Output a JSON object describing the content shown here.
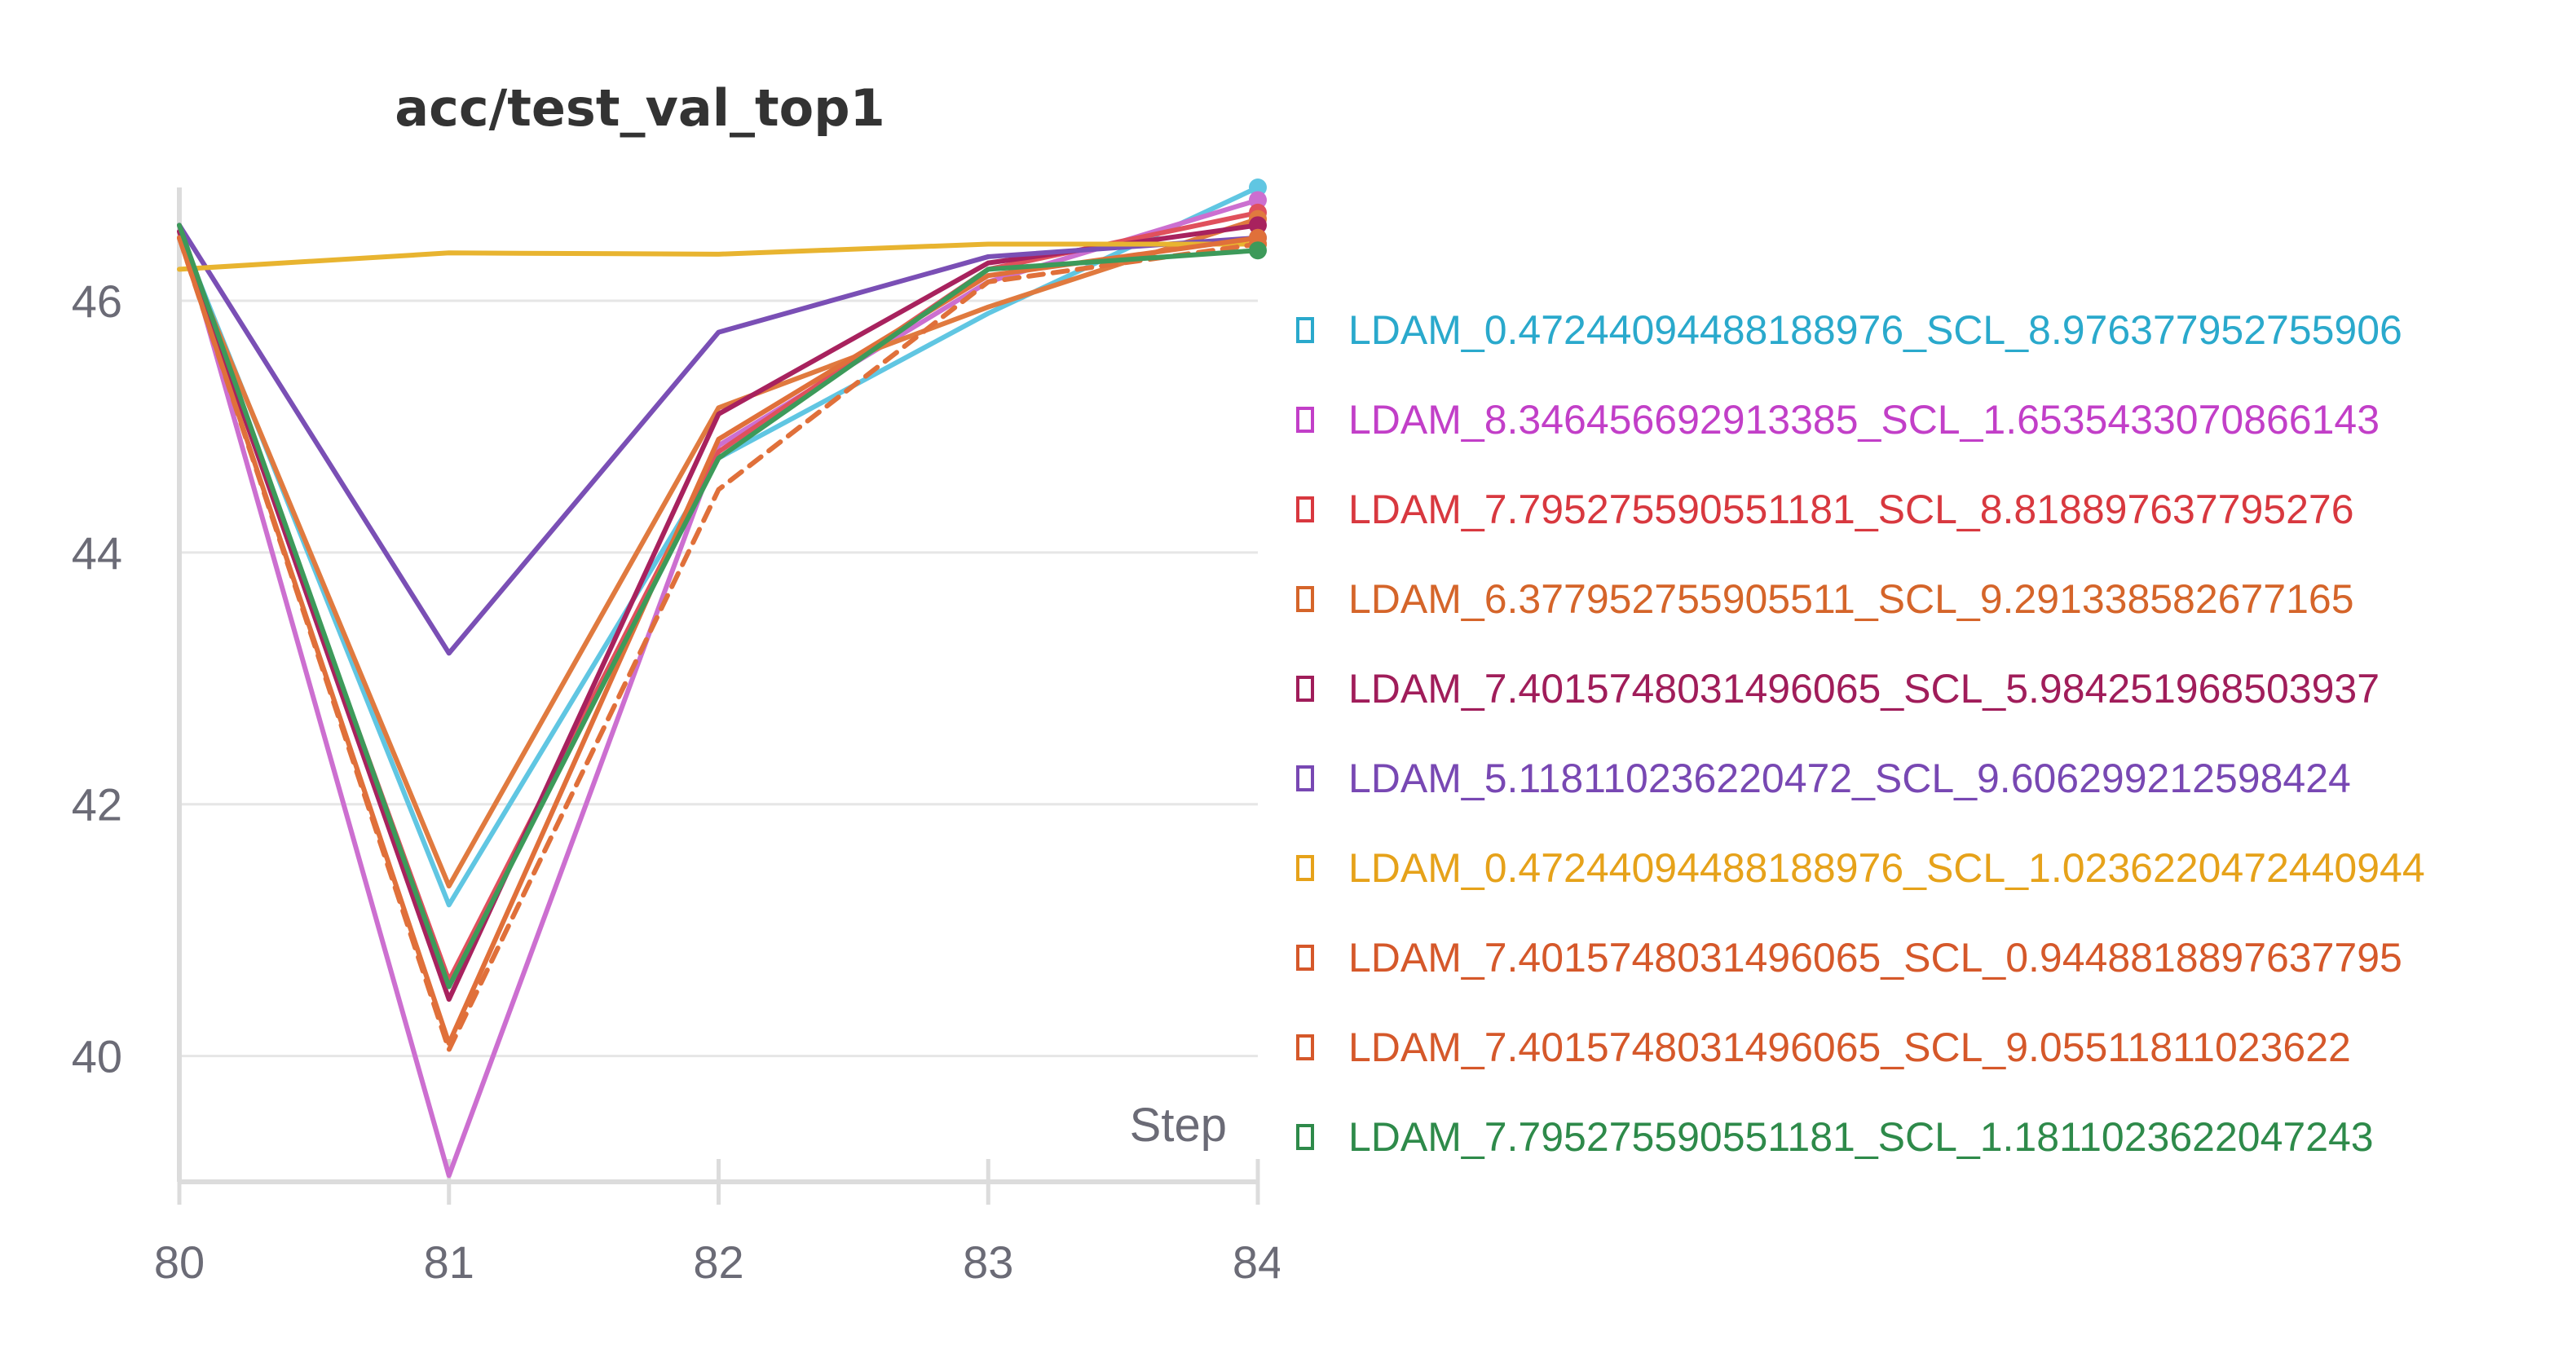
{
  "chart_data": {
    "type": "line",
    "title": "acc/test_val_top1",
    "xlabel": "Step",
    "ylabel": "",
    "x": [
      80,
      81,
      82,
      83,
      84
    ],
    "xlim": [
      80,
      84
    ],
    "ylim": [
      39,
      46.9
    ],
    "yticks": [
      40,
      42,
      44,
      46
    ],
    "xticks": [
      80,
      81,
      82,
      83,
      84
    ],
    "grid": true,
    "legend_position": "right",
    "series": [
      {
        "name": "LDAM_0.47244094488188976_SCL_8.976377952755906",
        "color": "#2aa9cc",
        "plotColor": "#60c6e2",
        "dashed": false,
        "values": [
          46.55,
          41.2,
          44.75,
          45.9,
          46.9
        ]
      },
      {
        "name": "LDAM_8.346456692913385_SCL_1.6535433070866143",
        "color": "#c23fc8",
        "plotColor": "#cc6fd0",
        "dashed": false,
        "values": [
          46.6,
          39.05,
          44.85,
          46.15,
          46.8
        ]
      },
      {
        "name": "LDAM_7.795275590551181_SCL_8.818897637795276",
        "color": "#d8383f",
        "plotColor": "#e0505c",
        "dashed": false,
        "values": [
          46.5,
          40.6,
          44.8,
          46.25,
          46.7
        ]
      },
      {
        "name": "LDAM_6.377952755905511_SCL_9.291338582677165",
        "color": "#d5652a",
        "plotColor": "#e07a3f",
        "dashed": false,
        "values": [
          46.5,
          41.35,
          45.15,
          45.95,
          46.65
        ]
      },
      {
        "name": "LDAM_7.4015748031496065_SCL_5.984251968503937",
        "color": "#a01d5a",
        "plotColor": "#a8225e",
        "dashed": false,
        "values": [
          46.55,
          40.45,
          45.1,
          46.3,
          46.6
        ]
      },
      {
        "name": "LDAM_5.118110236220472_SCL_9.606299212598424",
        "color": "#7848b3",
        "plotColor": "#7a4fb5",
        "dashed": false,
        "values": [
          46.6,
          43.2,
          45.75,
          46.35,
          46.5
        ]
      },
      {
        "name": "LDAM_0.47244094488188976_SCL_1.0236220472440944",
        "color": "#e6a21a",
        "plotColor": "#e8b430",
        "dashed": false,
        "values": [
          46.25,
          46.38,
          46.37,
          46.45,
          46.45
        ]
      },
      {
        "name": "LDAM_7.4015748031496065_SCL_0.9448818897637795",
        "color": "#d5582a",
        "plotColor": "#e0703a",
        "dashed": true,
        "values": [
          46.5,
          40.05,
          44.5,
          46.15,
          46.45
        ]
      },
      {
        "name": "LDAM_7.4015748031496065_SCL_9.05511811023622",
        "color": "#d5582a",
        "plotColor": "#e0703a",
        "dashed": false,
        "values": [
          46.5,
          40.1,
          44.9,
          46.2,
          46.5
        ]
      },
      {
        "name": "LDAM_7.795275590551181_SCL_1.1811023622047243",
        "color": "#2e8a4a",
        "plotColor": "#3d9a5a",
        "dashed": false,
        "values": [
          46.6,
          40.55,
          44.75,
          46.25,
          46.4
        ]
      }
    ]
  }
}
